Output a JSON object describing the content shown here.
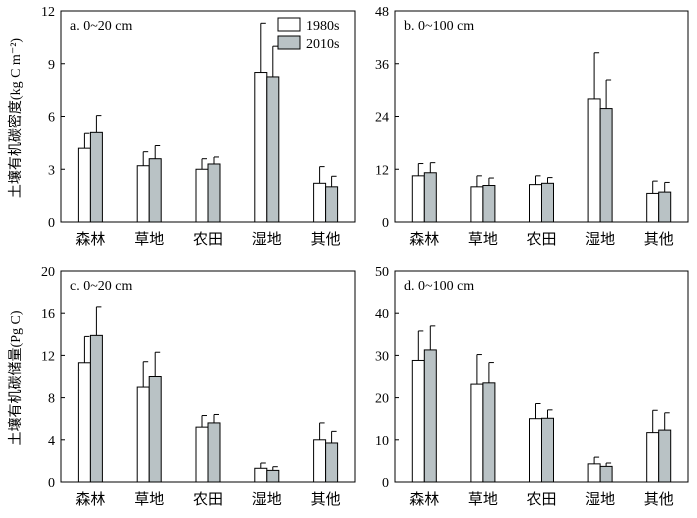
{
  "y_title_top": "土壤有机碳密度(kg C m⁻²)",
  "y_title_bottom": "土壤有机碳储量(Pg C)",
  "legend": [
    "1980s",
    "2010s"
  ],
  "colors": {
    "s1980": "#ffffff",
    "s2010": "#b9c2c5",
    "stroke": "#000000"
  },
  "chart_data": [
    {
      "type": "bar",
      "title": "a. 0~20 cm",
      "categories": [
        "森林",
        "草地",
        "农田",
        "湿地",
        "其他"
      ],
      "series": [
        {
          "name": "1980s",
          "values": [
            4.2,
            3.2,
            3.0,
            8.5,
            2.2
          ],
          "errors": [
            0.85,
            0.8,
            0.6,
            2.8,
            0.95
          ]
        },
        {
          "name": "2010s",
          "values": [
            5.1,
            3.6,
            3.3,
            8.25,
            2.0
          ],
          "errors": [
            0.95,
            0.75,
            0.4,
            1.75,
            0.6
          ]
        }
      ],
      "ylim": [
        0,
        12
      ],
      "yticks": [
        0,
        3,
        6,
        9,
        12
      ],
      "legend_position": "top-right"
    },
    {
      "type": "bar",
      "title": "b. 0~100 cm",
      "categories": [
        "森林",
        "草地",
        "农田",
        "湿地",
        "其他"
      ],
      "series": [
        {
          "name": "1980s",
          "values": [
            10.5,
            8.0,
            8.5,
            28.0,
            6.5
          ],
          "errors": [
            2.8,
            2.5,
            2.0,
            10.5,
            2.8
          ]
        },
        {
          "name": "2010s",
          "values": [
            11.2,
            8.3,
            8.8,
            25.8,
            6.8
          ],
          "errors": [
            2.3,
            1.7,
            1.3,
            6.5,
            2.2
          ]
        }
      ],
      "ylim": [
        0,
        48
      ],
      "yticks": [
        0,
        12,
        24,
        36,
        48
      ]
    },
    {
      "type": "bar",
      "title": "c. 0~20 cm",
      "categories": [
        "森林",
        "草地",
        "农田",
        "湿地",
        "其他"
      ],
      "series": [
        {
          "name": "1980s",
          "values": [
            11.3,
            9.0,
            5.2,
            1.3,
            4.0
          ],
          "errors": [
            2.5,
            2.4,
            1.1,
            0.5,
            1.6
          ]
        },
        {
          "name": "2010s",
          "values": [
            13.9,
            10.0,
            5.6,
            1.1,
            3.7
          ],
          "errors": [
            2.7,
            2.3,
            0.8,
            0.35,
            1.1
          ]
        }
      ],
      "ylim": [
        0,
        20
      ],
      "yticks": [
        0,
        4,
        8,
        12,
        16,
        20
      ]
    },
    {
      "type": "bar",
      "title": "d. 0~100 cm",
      "categories": [
        "森林",
        "草地",
        "农田",
        "湿地",
        "其他"
      ],
      "series": [
        {
          "name": "1980s",
          "values": [
            28.8,
            23.2,
            15.0,
            4.3,
            11.7
          ],
          "errors": [
            7.0,
            7.0,
            3.6,
            1.6,
            5.3
          ]
        },
        {
          "name": "2010s",
          "values": [
            31.3,
            23.5,
            15.1,
            3.7,
            12.3
          ],
          "errors": [
            5.7,
            4.8,
            2.0,
            0.8,
            4.1
          ]
        }
      ],
      "ylim": [
        0,
        50
      ],
      "yticks": [
        0,
        10,
        20,
        30,
        40,
        50
      ]
    }
  ]
}
